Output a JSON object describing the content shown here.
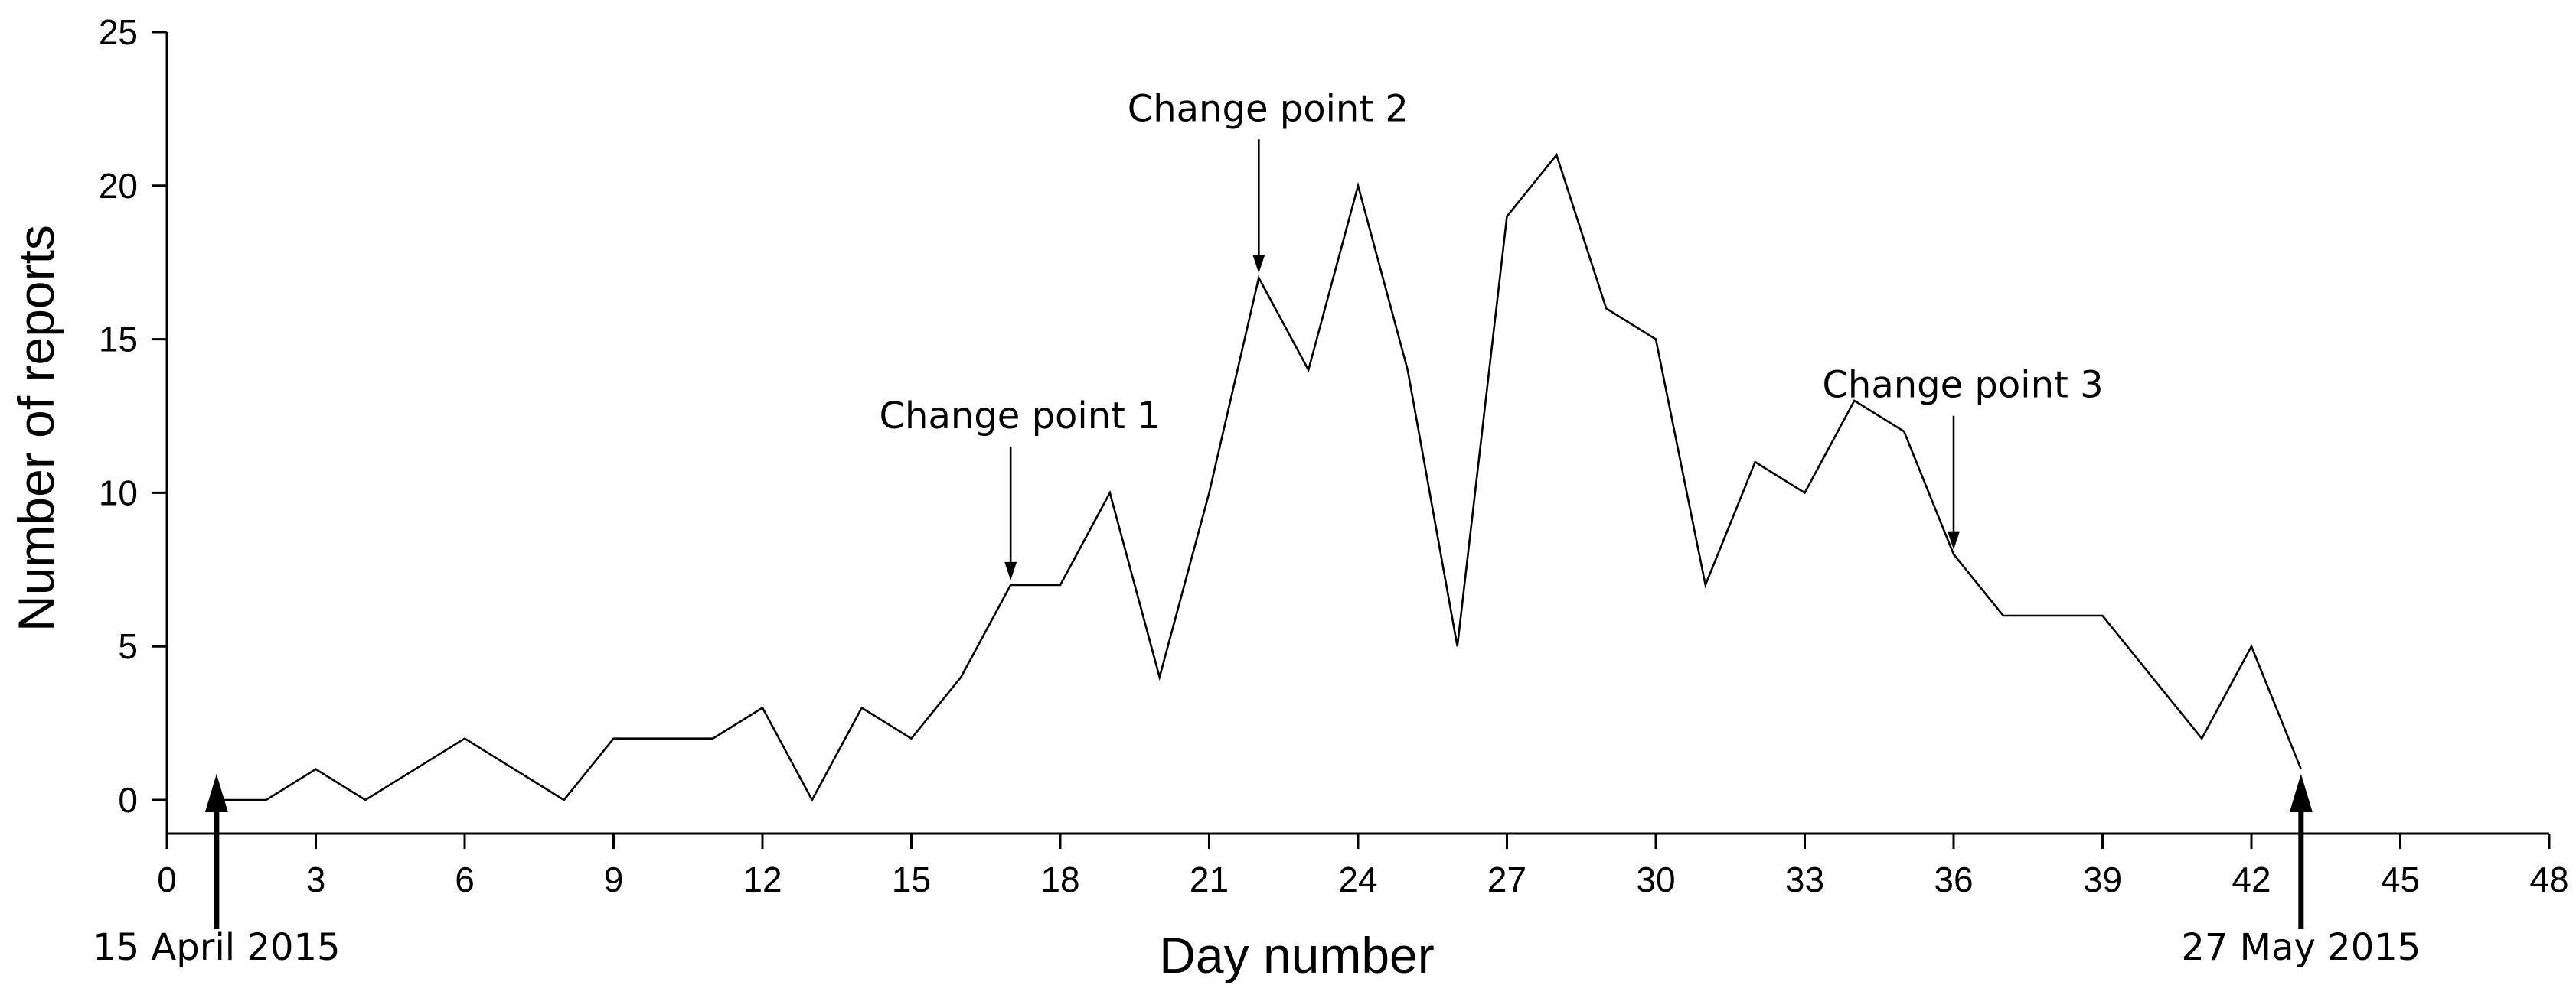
{
  "chart_data": {
    "type": "line",
    "xlabel": "Day number",
    "ylabel": "Number of reports",
    "xlim": [
      0,
      48
    ],
    "ylim": [
      -1,
      25
    ],
    "xticks": [
      0,
      3,
      6,
      9,
      12,
      15,
      18,
      21,
      24,
      27,
      30,
      33,
      36,
      39,
      42,
      45,
      48
    ],
    "yticks": [
      0,
      5,
      10,
      15,
      20,
      25
    ],
    "grid": false,
    "series": [
      {
        "x": [
          1,
          2,
          3,
          4,
          5,
          6,
          7,
          8,
          9,
          10,
          11,
          12,
          13,
          14,
          15,
          16,
          17,
          18,
          19,
          20,
          21,
          22,
          23,
          24,
          25,
          26,
          27,
          28,
          29,
          30,
          31,
          32,
          33,
          34,
          35,
          36,
          37,
          38,
          39,
          40,
          41,
          42,
          43
        ],
        "values": [
          0,
          0,
          1,
          0,
          1,
          2,
          1,
          0,
          2,
          2,
          2,
          3,
          0,
          3,
          2,
          4,
          7,
          7,
          10,
          4,
          10,
          17,
          14,
          20,
          14,
          5,
          19,
          21,
          16,
          15,
          7,
          11,
          10,
          13,
          12,
          8,
          6,
          6,
          6,
          4,
          2,
          5,
          1
        ]
      }
    ],
    "annotations": [
      {
        "label": "Change point 1",
        "x": 17,
        "y": 7,
        "style": "thin-arrow-down"
      },
      {
        "label": "Change point 2",
        "x": 22,
        "y": 17,
        "style": "thin-arrow-down"
      },
      {
        "label": "Change point 3",
        "x": 36,
        "y": 8,
        "style": "thin-arrow-down"
      },
      {
        "label": "15 April 2015",
        "x": 1,
        "style": "bold-arrow-up"
      },
      {
        "label": "27 May 2015",
        "x": 43,
        "style": "bold-arrow-up"
      }
    ]
  }
}
